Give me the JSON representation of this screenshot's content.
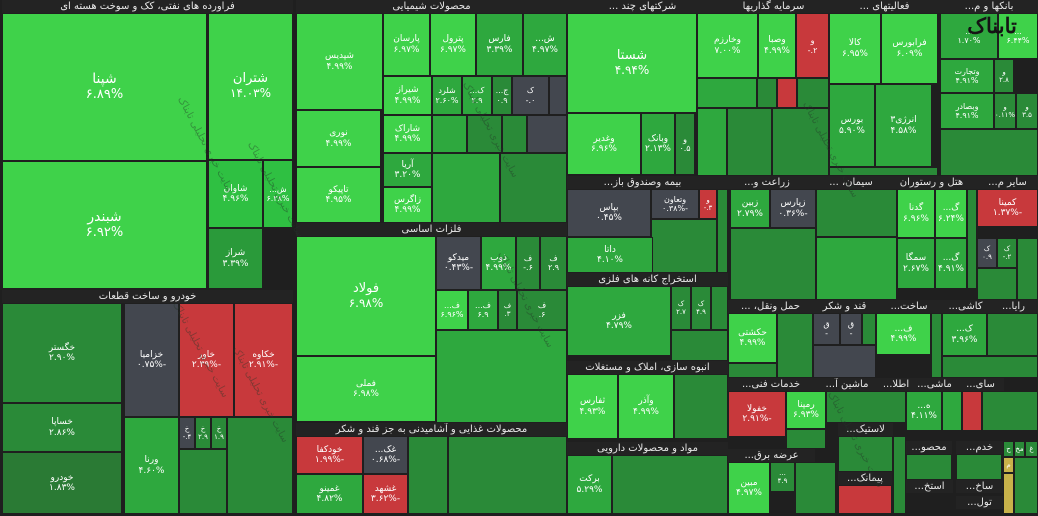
{
  "chart_data": {
    "type": "treemap",
    "title": "",
    "color_scale": {
      "positive": "#22b53c",
      "light_positive": "#3fd24a",
      "dark_positive": "#2a7a34",
      "negative": "#c8393c",
      "neutral": "#43474f"
    },
    "sectors": [
      {
        "name": "فراورده های نفتی، کک و سوخت هسته ای",
        "label_shown": "فراورده های نفتی، کک و سوخت هسته ای"
      },
      {
        "name": "محصولات شیمیایی",
        "label_shown": "محصولات شیمیایی"
      },
      {
        "name": "شرکتهای چند ...",
        "label_shown": "شرکتهای چند ..."
      },
      {
        "name": "سرمایه گذاریها",
        "label_shown": "سرمایه گذاریها"
      },
      {
        "name": "فعالیتهای ...",
        "label_shown": "فعالیتهای ..."
      },
      {
        "name": "بانکها و م...",
        "label_shown": "بانکها و م..."
      },
      {
        "name": "خودرو و ساخت قطعات",
        "label_shown": "خودرو و ساخت قطعات"
      },
      {
        "name": "فلزات اساسی",
        "label_shown": "فلزات اساسی"
      },
      {
        "name": "بیمه وصندوق باز...",
        "label_shown": "بیمه وصندوق باز..."
      },
      {
        "name": "زراعت و...",
        "label_shown": "زراعت و..."
      },
      {
        "name": "سیمان، ...",
        "label_shown": "سیمان، ..."
      },
      {
        "name": "هتل و رستوران",
        "label_shown": "هتل و رستوران"
      },
      {
        "name": "سایر م...",
        "label_shown": "سایر م..."
      },
      {
        "name": "استخراج کانه های فلزی",
        "label_shown": "استخراج کانه های فلزی"
      },
      {
        "name": "حمل ونقل، ...",
        "label_shown": "حمل ونقل، ..."
      },
      {
        "name": "قند و شکر",
        "label_shown": "قند و شکر"
      },
      {
        "name": "ساخت...",
        "label_shown": "ساخت..."
      },
      {
        "name": "کاشی...",
        "label_shown": "کاشی..."
      },
      {
        "name": "رایا...",
        "label_shown": "رایا..."
      },
      {
        "name": "انبوه سازی، املاک و مستغلات",
        "label_shown": "انبوه سازی، املاک و مستغلات"
      },
      {
        "name": "خدمات فنی...",
        "label_shown": "خدمات فنی..."
      },
      {
        "name": "ماشین آ...",
        "label_shown": "ماشین آ..."
      },
      {
        "name": "اطلا...",
        "label_shown": "اطلا..."
      },
      {
        "name": "ماشی...",
        "label_shown": "ماشی..."
      },
      {
        "name": "سای...",
        "label_shown": "سای..."
      },
      {
        "name": "محصولات غذایی و آشامیدنی به جز قند و شکر",
        "label_shown": "محصولات غذایی و آشامیدنی به جز قند و شکر"
      },
      {
        "name": "مواد و محصولات دارویی",
        "label_shown": "مواد و محصولات دارویی"
      },
      {
        "name": "عرضه برق...",
        "label_shown": "عرضه برق..."
      },
      {
        "name": "لاستیک...",
        "label_shown": "لاستیک..."
      },
      {
        "name": "پیمانک...",
        "label_shown": "پیمانک..."
      },
      {
        "name": "محصو...",
        "label_shown": "محصو..."
      },
      {
        "name": "خدم...",
        "label_shown": "خدم..."
      },
      {
        "name": "استخ...",
        "label_shown": "استخ..."
      },
      {
        "name": "ساخ...",
        "label_shown": "ساخ..."
      },
      {
        "name": "تول...",
        "label_shown": "تول..."
      }
    ],
    "symbols": [
      {
        "sector": "فراورده های نفتی، کک و سوخت هسته ای",
        "name": "شپنا",
        "change": "۶.۸۹%",
        "color": "#3fd24a"
      },
      {
        "sector": "فراورده های نفتی، کک و سوخت هسته ای",
        "name": "شبندر",
        "change": "۶.۹۲%",
        "color": "#3fd24a"
      },
      {
        "sector": "فراورده های نفتی، کک و سوخت هسته ای",
        "name": "شتران",
        "change": "۱۴.۰۳%",
        "color": "#3fd24a"
      },
      {
        "sector": "فراورده های نفتی، کک و سوخت هسته ای",
        "name": "شاوان",
        "change": "۴.۹۶%",
        "color": "#2fc042"
      },
      {
        "sector": "فراورده های نفتی، کک و سوخت هسته ای",
        "name": "ش...",
        "change": "۶.۲۸%",
        "color": "#2fc042"
      },
      {
        "sector": "فراورده های نفتی، کک و سوخت هسته ای",
        "name": "شراز",
        "change": "۳.۳۹%",
        "color": "#2a9a3a"
      },
      {
        "sector": "محصولات شیمیایی",
        "name": "شپدیس",
        "change": "۴.۹۹%",
        "color": "#3fd24a"
      },
      {
        "sector": "محصولات شیمیایی",
        "name": "نوری",
        "change": "۴.۹۹%",
        "color": "#3fd24a"
      },
      {
        "sector": "محصولات شیمیایی",
        "name": "تاپیکو",
        "change": "۴.۹۵%",
        "color": "#3fd24a"
      },
      {
        "sector": "محصولات شیمیایی",
        "name": "پارسان",
        "change": "۶.۹۷%",
        "color": "#3fd24a"
      },
      {
        "sector": "محصولات شیمیایی",
        "name": "پترول",
        "change": "۶.۹۷%",
        "color": "#3fd24a"
      },
      {
        "sector": "محصولات شیمیایی",
        "name": "فارس",
        "change": "۳.۳۹%",
        "color": "#2ea83e"
      },
      {
        "sector": "محصولات شیمیایی",
        "name": "ش...",
        "change": "۴.۹۷%",
        "color": "#2ea83e"
      },
      {
        "sector": "محصولات شیمیایی",
        "name": "شیراز",
        "change": "۴.۹۹%",
        "color": "#3fd24a"
      },
      {
        "sector": "محصولات شیمیایی",
        "name": "شلرد",
        "change": "۲.۶۰%",
        "color": "#2ea83e"
      },
      {
        "sector": "محصولات شیمیایی",
        "name": "ک...",
        "change": "۲.۹",
        "color": "#2ea83e"
      },
      {
        "sector": "محصولات شیمیایی",
        "name": "ج...",
        "change": "۰.۹",
        "color": "#2a8a38"
      },
      {
        "sector": "محصولات شیمیایی",
        "name": "ک",
        "change": "۰.-",
        "color": "#43474f"
      },
      {
        "sector": "محصولات شیمیایی",
        "name": "شاراک",
        "change": "۴.۹۹%",
        "color": "#3fd24a"
      },
      {
        "sector": "محصولات شیمیایی",
        "name": "آریا",
        "change": "۳.۲۰%",
        "color": "#2ea83e"
      },
      {
        "sector": "محصولات شیمیایی",
        "name": "زاگرس",
        "change": "۴.۹۹%",
        "color": "#3fd24a"
      },
      {
        "sector": "شرکتهای چند ...",
        "name": "شستا",
        "change": "۴.۹۴%",
        "color": "#3fd24a"
      },
      {
        "sector": "شرکتهای چند ...",
        "name": "وغدیر",
        "change": "۶.۹۶%",
        "color": "#3fd24a"
      },
      {
        "sector": "شرکتهای چند ...",
        "name": "وبانک",
        "change": "۲.۱۳%",
        "color": "#2ea83e"
      },
      {
        "sector": "شرکتهای چند ...",
        "name": "و",
        "change": "۰.۵",
        "color": "#2a8a38"
      },
      {
        "sector": "سرمایه گذاریها",
        "name": "وخارزم",
        "change": "۷.۰۰%",
        "color": "#3fd24a"
      },
      {
        "sector": "سرمایه گذاریها",
        "name": "وصبا",
        "change": "۴.۹۹%",
        "color": "#3fd24a"
      },
      {
        "sector": "سرمایه گذاریها",
        "name": "و",
        "change": "۲.-",
        "color": "#c8393c"
      },
      {
        "sector": "فعالیتهای ...",
        "name": "کالا",
        "change": "۶.۹۵%",
        "color": "#3fd24a"
      },
      {
        "sector": "فعالیتهای ...",
        "name": "فرابورس",
        "change": "۶.۰۹%",
        "color": "#3fd24a"
      },
      {
        "sector": "فعالیتهای ...",
        "name": "بورس",
        "change": "۵.۹۰%",
        "color": "#2ea83e"
      },
      {
        "sector": "فعالیتهای ...",
        "name": "انرژی۳",
        "change": "۴.۵۸%",
        "color": "#2ea83e"
      },
      {
        "sector": "بانکها و م...",
        "name": "...",
        "change": "۱.۷۰%",
        "color": "#2ea83e"
      },
      {
        "sector": "بانکها و م...",
        "name": "...",
        "change": "۶.۴۴%",
        "color": "#3fd24a"
      },
      {
        "sector": "بانکها و م...",
        "name": "وتجارت",
        "change": "۴.۹۱%",
        "color": "#2ea83e"
      },
      {
        "sector": "بانکها و م...",
        "name": "و",
        "change": "۲.۸",
        "color": "#2a8a38"
      },
      {
        "sector": "بانکها و م...",
        "name": "وبصادر",
        "change": "۴.۹۱%",
        "color": "#2ea83e"
      },
      {
        "sector": "بانکها و م...",
        "name": "و",
        "change": "۰.۱۱%",
        "color": "#2a8a38"
      },
      {
        "sector": "بانکها و م...",
        "name": "و",
        "change": "۳.۵",
        "color": "#2a8a38"
      },
      {
        "sector": "خودرو و ساخت قطعات",
        "name": "خگستر",
        "change": "۲.۹۰%",
        "color": "#2a8a38"
      },
      {
        "sector": "خودرو و ساخت قطعات",
        "name": "خساپا",
        "change": "۲.۸۶%",
        "color": "#2a8a38"
      },
      {
        "sector": "خودرو و ساخت قطعات",
        "name": "خودرو",
        "change": "۱.۸۳%",
        "color": "#2a7a34"
      },
      {
        "sector": "خودرو و ساخت قطعات",
        "name": "خزامیا",
        "change": "-۰.۷۵%",
        "color": "#43474f"
      },
      {
        "sector": "خودرو و ساخت قطعات",
        "name": "خاور",
        "change": "-۲.۳۹%",
        "color": "#c8393c"
      },
      {
        "sector": "خودرو و ساخت قطعات",
        "name": "خکاوه",
        "change": "-۲.۹۱%",
        "color": "#c8393c"
      },
      {
        "sector": "خودرو و ساخت قطعات",
        "name": "ورنا",
        "change": "۴.۶۰%",
        "color": "#2ea83e"
      },
      {
        "sector": "خودرو و ساخت قطعات",
        "name": "خ",
        "change": "۴.-",
        "color": "#43474f"
      },
      {
        "sector": "خودرو و ساخت قطعات",
        "name": "خ",
        "change": "۲.۹",
        "color": "#2a8a38"
      },
      {
        "sector": "خودرو و ساخت قطعات",
        "name": "خ",
        "change": "۱.۹",
        "color": "#2a8a38"
      },
      {
        "sector": "فلزات اساسی",
        "name": "فولاد",
        "change": "۶.۹۸%",
        "color": "#3fd24a"
      },
      {
        "sector": "فلزات اساسی",
        "name": "فملی",
        "change": "۶.۹۸%",
        "color": "#3fd24a"
      },
      {
        "sector": "فلزات اساسی",
        "name": "میدکو",
        "change": "-۰.۴۳%",
        "color": "#43474f"
      },
      {
        "sector": "فلزات اساسی",
        "name": "ذوب",
        "change": "۴.۹۹%",
        "color": "#2ea83e"
      },
      {
        "sector": "فلزات اساسی",
        "name": "ف",
        "change": "۶.-",
        "color": "#2a8a38"
      },
      {
        "sector": "فلزات اساسی",
        "name": "ف",
        "change": "۲.۹",
        "color": "#2a8a38"
      },
      {
        "sector": "فلزات اساسی",
        "name": "ف...",
        "change": "۶.۹۶%",
        "color": "#3fd24a"
      },
      {
        "sector": "فلزات اساسی",
        "name": "ف...",
        "change": "۶.۹",
        "color": "#2ea83e"
      },
      {
        "sector": "فلزات اساسی",
        "name": "ف",
        "change": "۳.",
        "color": "#2a8a38"
      },
      {
        "sector": "فلزات اساسی",
        "name": "ف",
        "change": "۶.",
        "color": "#2a8a38"
      },
      {
        "sector": "بیمه وصندوق باز...",
        "name": "بپاس",
        "change": "۰.۴۵%",
        "color": "#43474f"
      },
      {
        "sector": "بیمه وصندوق باز...",
        "name": "وتعاون",
        "change": "-۰.۳۸%",
        "color": "#43474f"
      },
      {
        "sector": "بیمه وصندوق باز...",
        "name": "و",
        "change": "۳.-",
        "color": "#c8393c"
      },
      {
        "sector": "بیمه وصندوق باز...",
        "name": "داتا",
        "change": "۴.۱۰%",
        "color": "#2ea83e"
      },
      {
        "sector": "زراعت و...",
        "name": "زبین",
        "change": "۲.۷۹%",
        "color": "#2ea83e"
      },
      {
        "sector": "زراعت و...",
        "name": "زپارس",
        "change": "-۰.۳۶%",
        "color": "#43474f"
      },
      {
        "sector": "هتل و رستوران",
        "name": "گدنا",
        "change": "۶.۹۶%",
        "color": "#3fd24a"
      },
      {
        "sector": "هتل و رستوران",
        "name": "گ...",
        "change": "۶.۲۴%",
        "color": "#3fd24a"
      },
      {
        "sector": "هتل و رستوران",
        "name": "سمگا",
        "change": "۲.۶۷%",
        "color": "#2ea83e"
      },
      {
        "sector": "هتل و رستوران",
        "name": "گ...",
        "change": "۴.۹۱%",
        "color": "#2ea83e"
      },
      {
        "sector": "سایر م...",
        "name": "کمینا",
        "change": "-۱.۳۷%",
        "color": "#c8393c"
      },
      {
        "sector": "سایر م...",
        "name": "ک",
        "change": "۰.۹",
        "color": "#43474f"
      },
      {
        "sector": "سایر م...",
        "name": "ک",
        "change": "۲.-",
        "color": "#2a8a38"
      },
      {
        "sector": "استخراج کانه های فلزی",
        "name": "فزر",
        "change": "۴.۷۹%",
        "color": "#2ea83e"
      },
      {
        "sector": "استخراج کانه های فلزی",
        "name": "ک",
        "change": "۲.۷",
        "color": "#2a8a38"
      },
      {
        "sector": "استخراج کانه های فلزی",
        "name": "ک",
        "change": "۴.۹",
        "color": "#2a8a38"
      },
      {
        "sector": "حمل ونقل، ...",
        "name": "حکشتی",
        "change": "۴.۹۹%",
        "color": "#3fd24a"
      },
      {
        "sector": "قند و شکر",
        "name": "ق",
        "change": "-",
        "color": "#43474f"
      },
      {
        "sector": "قند و شکر",
        "name": "ق",
        "change": "-",
        "color": "#43474f"
      },
      {
        "sector": "ساخت...",
        "name": "ف...",
        "change": "۴.۹۹%",
        "color": "#3fd24a"
      },
      {
        "sector": "کاشی...",
        "name": "ک...",
        "change": "۳.۹۶%",
        "color": "#2ea83e"
      },
      {
        "sector": "انبوه سازی، املاک و مستغلات",
        "name": "ثفارس",
        "change": "۴.۹۳%",
        "color": "#3fd24a"
      },
      {
        "sector": "انبوه سازی، املاک و مستغلات",
        "name": "وآذر",
        "change": "۴.۹۹%",
        "color": "#3fd24a"
      },
      {
        "sector": "خدمات فنی...",
        "name": "رمپنا",
        "change": "۶.۹۳%",
        "color": "#3fd24a"
      },
      {
        "sector": "خدمات فنی...",
        "name": "خفولا",
        "change": "-۲.۹۱%",
        "color": "#c8393c"
      },
      {
        "sector": "اطلا...",
        "name": "ه...",
        "change": "۴.۱۱%",
        "color": "#2ea83e"
      },
      {
        "sector": "محصولات غذایی و آشامیدنی به جز قند و شکر",
        "name": "غک...",
        "change": "-۰.۶۸%",
        "color": "#43474f"
      },
      {
        "sector": "محصولات غذایی و آشامیدنی به جز قند و شکر",
        "name": "خودکفا",
        "change": "-۱.۹۹%",
        "color": "#c8393c"
      },
      {
        "sector": "محصولات غذایی و آشامیدنی به جز قند و شکر",
        "name": "غمینو",
        "change": "۴.۸۲%",
        "color": "#2ea83e"
      },
      {
        "sector": "محصولات غذایی و آشامیدنی به جز قند و شکر",
        "name": "غشهد",
        "change": "-۳.۶۲%",
        "color": "#c8393c"
      },
      {
        "sector": "مواد و محصولات دارویی",
        "name": "برکت",
        "change": "۵.۲۹%",
        "color": "#2ea83e"
      },
      {
        "sector": "عرضه برق...",
        "name": "مبین",
        "change": "۴.۹۷%",
        "color": "#3fd24a"
      },
      {
        "sector": "عرضه برق...",
        "name": "...",
        "change": "۴.۹",
        "color": "#2a8a38"
      },
      {
        "sector": "تول...",
        "name": "ح",
        "change": "",
        "color": "#2a8a38"
      },
      {
        "sector": "تول...",
        "name": "مخ",
        "change": "",
        "color": "#2a8a38"
      },
      {
        "sector": "تول...",
        "name": "غ",
        "change": "",
        "color": "#2a8a38"
      },
      {
        "sector": "تول...",
        "name": "م",
        "change": "",
        "color": "#c8b24a"
      }
    ]
  },
  "watermark": {
    "texts": [
      "سایت خبری تحلیلی تابناک"
    ]
  },
  "logo": {
    "text": "تابناک"
  }
}
